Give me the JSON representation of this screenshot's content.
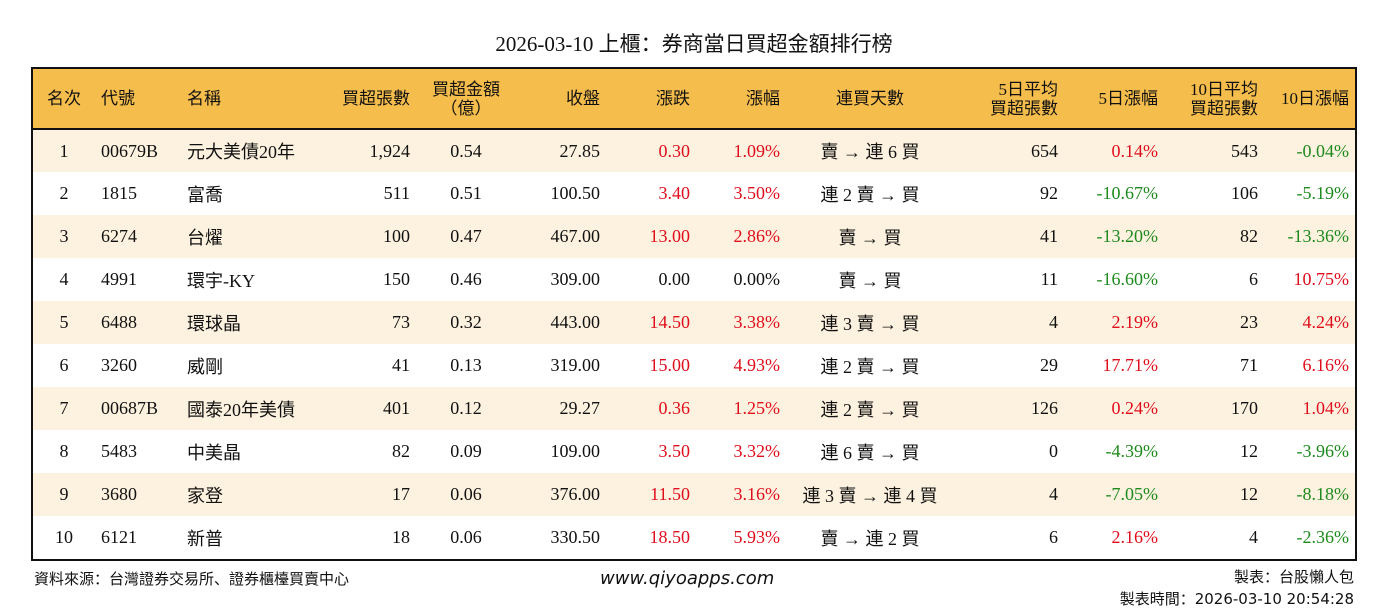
{
  "title": "2026-03-10 上櫃：券商當日買超金額排行榜",
  "colors": {
    "header_bg": "#f5bd4b",
    "row_odd_bg": "#fdf2df",
    "row_even_bg": "#ffffff",
    "up": "#e00d1c",
    "down": "#1e8a1e"
  },
  "table": {
    "headers": {
      "rank": "名次",
      "code": "代號",
      "name": "名稱",
      "net_buy_lots": "買超張數",
      "net_buy_amount_l1": "買超金額",
      "net_buy_amount_l2": "（億）",
      "close": "收盤",
      "change": "漲跌",
      "change_pct": "漲幅",
      "streak": "連買天數",
      "avg5_l1": "5日平均",
      "avg5_l2": "買超張數",
      "pct5": "5日漲幅",
      "avg10_l1": "10日平均",
      "avg10_l2": "買超張數",
      "pct10": "10日漲幅"
    },
    "rows": [
      {
        "rank": "1",
        "code": "00679B",
        "name": "元大美債20年",
        "lots": "1,924",
        "amount": "0.54",
        "close": "27.85",
        "change": "0.30",
        "change_pct": "1.09%",
        "streak": "賣 → 連 6 買",
        "avg5": "654",
        "pct5": "0.14%",
        "avg10": "543",
        "pct10": "-0.04%",
        "change_dir": "red",
        "pct5_dir": "red",
        "pct10_dir": "green"
      },
      {
        "rank": "2",
        "code": "1815",
        "name": "富喬",
        "lots": "511",
        "amount": "0.51",
        "close": "100.50",
        "change": "3.40",
        "change_pct": "3.50%",
        "streak": "連 2 賣 → 買",
        "avg5": "92",
        "pct5": "-10.67%",
        "avg10": "106",
        "pct10": "-5.19%",
        "change_dir": "red",
        "pct5_dir": "green",
        "pct10_dir": "green"
      },
      {
        "rank": "3",
        "code": "6274",
        "name": "台燿",
        "lots": "100",
        "amount": "0.47",
        "close": "467.00",
        "change": "13.00",
        "change_pct": "2.86%",
        "streak": "賣 → 買",
        "avg5": "41",
        "pct5": "-13.20%",
        "avg10": "82",
        "pct10": "-13.36%",
        "change_dir": "red",
        "pct5_dir": "green",
        "pct10_dir": "green"
      },
      {
        "rank": "4",
        "code": "4991",
        "name": "環宇-KY",
        "lots": "150",
        "amount": "0.46",
        "close": "309.00",
        "change": "0.00",
        "change_pct": "0.00%",
        "streak": "賣 → 買",
        "avg5": "11",
        "pct5": "-16.60%",
        "avg10": "6",
        "pct10": "10.75%",
        "change_dir": "black",
        "pct5_dir": "green",
        "pct10_dir": "red"
      },
      {
        "rank": "5",
        "code": "6488",
        "name": "環球晶",
        "lots": "73",
        "amount": "0.32",
        "close": "443.00",
        "change": "14.50",
        "change_pct": "3.38%",
        "streak": "連 3 賣 → 買",
        "avg5": "4",
        "pct5": "2.19%",
        "avg10": "23",
        "pct10": "4.24%",
        "change_dir": "red",
        "pct5_dir": "red",
        "pct10_dir": "red"
      },
      {
        "rank": "6",
        "code": "3260",
        "name": "威剛",
        "lots": "41",
        "amount": "0.13",
        "close": "319.00",
        "change": "15.00",
        "change_pct": "4.93%",
        "streak": "連 2 賣 → 買",
        "avg5": "29",
        "pct5": "17.71%",
        "avg10": "71",
        "pct10": "6.16%",
        "change_dir": "red",
        "pct5_dir": "red",
        "pct10_dir": "red"
      },
      {
        "rank": "7",
        "code": "00687B",
        "name": "國泰20年美債",
        "lots": "401",
        "amount": "0.12",
        "close": "29.27",
        "change": "0.36",
        "change_pct": "1.25%",
        "streak": "連 2 賣 → 買",
        "avg5": "126",
        "pct5": "0.24%",
        "avg10": "170",
        "pct10": "1.04%",
        "change_dir": "red",
        "pct5_dir": "red",
        "pct10_dir": "red"
      },
      {
        "rank": "8",
        "code": "5483",
        "name": "中美晶",
        "lots": "82",
        "amount": "0.09",
        "close": "109.00",
        "change": "3.50",
        "change_pct": "3.32%",
        "streak": "連 6 賣 → 買",
        "avg5": "0",
        "pct5": "-4.39%",
        "avg10": "12",
        "pct10": "-3.96%",
        "change_dir": "red",
        "pct5_dir": "green",
        "pct10_dir": "green"
      },
      {
        "rank": "9",
        "code": "3680",
        "name": "家登",
        "lots": "17",
        "amount": "0.06",
        "close": "376.00",
        "change": "11.50",
        "change_pct": "3.16%",
        "streak": "連 3 賣 → 連 4 買",
        "avg5": "4",
        "pct5": "-7.05%",
        "avg10": "12",
        "pct10": "-8.18%",
        "change_dir": "red",
        "pct5_dir": "green",
        "pct10_dir": "green"
      },
      {
        "rank": "10",
        "code": "6121",
        "name": "新普",
        "lots": "18",
        "amount": "0.06",
        "close": "330.50",
        "change": "18.50",
        "change_pct": "5.93%",
        "streak": "賣 → 連 2 買",
        "avg5": "6",
        "pct5": "2.16%",
        "avg10": "4",
        "pct10": "-2.36%",
        "change_dir": "red",
        "pct5_dir": "red",
        "pct10_dir": "green"
      }
    ]
  },
  "footer": {
    "source": "資料來源：台灣證券交易所、證券櫃檯買賣中心",
    "website": "www.qiyoapps.com",
    "author": "製表：台股懶人包",
    "made_time": "製表時間：2026-03-10 20:54:28"
  }
}
